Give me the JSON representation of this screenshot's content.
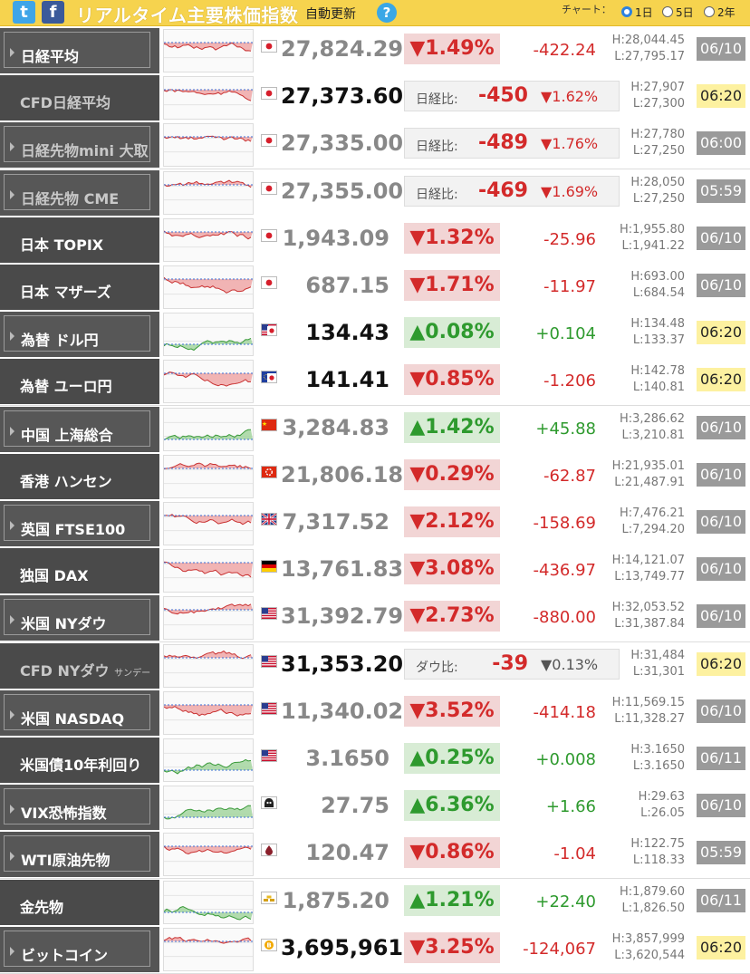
{
  "header": {
    "twitter_icon": "twitter-icon",
    "facebook_icon": "facebook-icon",
    "title": "リアルタイム主要株価指数",
    "auto_update": "自動更新",
    "help": "?",
    "chart_label": "チャート：",
    "options": [
      "1日",
      "5日",
      "2年"
    ],
    "selected_option": "1日"
  },
  "colors": {
    "header": "#f6d34e",
    "down": "#d32a2a",
    "up": "#2e9a2e",
    "live_time_bg": "#fdf1a0",
    "stale_time_bg": "#9a9a9a"
  },
  "rows": [
    {
      "name": "日経平均",
      "flag": "jp",
      "price": "27,824.29",
      "pct": "▼1.49%",
      "dir": "down",
      "change": "-422.24",
      "high": "H:28,044.45",
      "low": "L:27,795.17",
      "time": "06/10",
      "live": false,
      "cfd": false
    },
    {
      "name": "CFD日経平均",
      "flag": "jp",
      "price": "27,373.60",
      "diff_label": "日経比:",
      "diff_value": "-450",
      "diff_pct": "▼1.62%",
      "dir": "down",
      "high": "H:27,907",
      "low": "L:27,300",
      "time": "06:20",
      "live": true,
      "cfd": true
    },
    {
      "name": "日経先物mini 大取",
      "flag": "jp",
      "price": "27,335.00",
      "diff_label": "日経比:",
      "diff_value": "-489",
      "diff_pct": "▼1.76%",
      "dir": "down",
      "high": "H:27,780",
      "low": "L:27,250",
      "time": "06:00",
      "live": false,
      "cfd": true
    },
    {
      "name": "日経先物 CME",
      "flag": "jp",
      "price": "27,355.00",
      "diff_label": "日経比:",
      "diff_value": "-469",
      "diff_pct": "▼1.69%",
      "dir": "down",
      "high": "H:28,050",
      "low": "L:27,250",
      "time": "05:59",
      "live": false,
      "cfd": true
    },
    {
      "name": "日本 TOPIX",
      "flag": "jp",
      "price": "1,943.09",
      "pct": "▼1.32%",
      "dir": "down",
      "change": "-25.96",
      "high": "H:1,955.80",
      "low": "L:1,941.22",
      "time": "06/10",
      "live": false,
      "cfd": false
    },
    {
      "name": "日本 マザーズ",
      "flag": "jp",
      "price": "687.15",
      "pct": "▼1.71%",
      "dir": "down",
      "change": "-11.97",
      "high": "H:693.00",
      "low": "L:684.54",
      "time": "06/10",
      "live": false,
      "cfd": false
    },
    {
      "name": "為替 ドル円",
      "flag": "usjp",
      "price": "134.43",
      "pct": "▲0.08%",
      "dir": "up",
      "change": "+0.104",
      "high": "H:134.48",
      "low": "L:133.37",
      "time": "06:20",
      "live": true,
      "cfd": false
    },
    {
      "name": "為替 ユーロ円",
      "flag": "eujp",
      "price": "141.41",
      "pct": "▼0.85%",
      "dir": "down",
      "change": "-1.206",
      "high": "H:142.78",
      "low": "L:140.81",
      "time": "06:20",
      "live": true,
      "cfd": false
    },
    {
      "name": "中国 上海総合",
      "flag": "cn",
      "price": "3,284.83",
      "pct": "▲1.42%",
      "dir": "up",
      "change": "+45.88",
      "high": "H:3,286.62",
      "low": "L:3,210.81",
      "time": "06/10",
      "live": false,
      "cfd": false
    },
    {
      "name": "香港 ハンセン",
      "flag": "hk",
      "price": "21,806.18",
      "pct": "▼0.29%",
      "dir": "down",
      "change": "-62.87",
      "high": "H:21,935.01",
      "low": "L:21,487.91",
      "time": "06/10",
      "live": false,
      "cfd": false
    },
    {
      "name": "英国 FTSE100",
      "flag": "uk",
      "price": "7,317.52",
      "pct": "▼2.12%",
      "dir": "down",
      "change": "-158.69",
      "high": "H:7,476.21",
      "low": "L:7,294.20",
      "time": "06/10",
      "live": false,
      "cfd": false
    },
    {
      "name": "独国 DAX",
      "flag": "de",
      "price": "13,761.83",
      "pct": "▼3.08%",
      "dir": "down",
      "change": "-436.97",
      "high": "H:14,121.07",
      "low": "L:13,749.77",
      "time": "06/10",
      "live": false,
      "cfd": false
    },
    {
      "name": "米国 NYダウ",
      "flag": "us",
      "price": "31,392.79",
      "pct": "▼2.73%",
      "dir": "down",
      "change": "-880.00",
      "high": "H:32,053.52",
      "low": "L:31,387.84",
      "time": "06/10",
      "live": false,
      "cfd": false
    },
    {
      "name": "CFD NYダウ",
      "name_small": "サンデー",
      "flag": "us",
      "price": "31,353.20",
      "diff_label": "ダウ比:",
      "diff_value": "-39",
      "diff_pct": "▼0.13%",
      "dir": "down",
      "high": "H:31,484",
      "low": "L:31,301",
      "time": "06:20",
      "live": true,
      "cfd": true
    },
    {
      "name": "米国 NASDAQ",
      "flag": "us",
      "price": "11,340.02",
      "pct": "▼3.52%",
      "dir": "down",
      "change": "-414.18",
      "high": "H:11,569.15",
      "low": "L:11,328.27",
      "time": "06/10",
      "live": false,
      "cfd": false
    },
    {
      "name": "米国債10年利回り",
      "flag": "us",
      "price": "3.1650",
      "pct": "▲0.25%",
      "dir": "up",
      "change": "+0.008",
      "high": "H:3.1650",
      "low": "L:3.1650",
      "time": "06/11",
      "live": false,
      "cfd": false
    },
    {
      "name": "VIX恐怖指数",
      "flag": "vix",
      "price": "27.75",
      "pct": "▲6.36%",
      "dir": "up",
      "change": "+1.66",
      "high": "H:29.63",
      "low": "L:26.05",
      "time": "06/10",
      "live": false,
      "cfd": false
    },
    {
      "name": "WTI原油先物",
      "flag": "oil",
      "price": "120.47",
      "pct": "▼0.86%",
      "dir": "down",
      "change": "-1.04",
      "high": "H:122.75",
      "low": "L:118.33",
      "time": "05:59",
      "live": false,
      "cfd": false
    },
    {
      "name": "金先物",
      "flag": "gold",
      "price": "1,875.20",
      "pct": "▲1.21%",
      "dir": "up",
      "change": "+22.40",
      "high": "H:1,879.60",
      "low": "L:1,826.50",
      "time": "06/11",
      "live": false,
      "cfd": false
    },
    {
      "name": "ビットコイン",
      "flag": "btc",
      "price": "3,695,961",
      "pct": "▼3.25%",
      "dir": "down",
      "change": "-124,067",
      "high": "H:3,857,999",
      "low": "L:3,620,544",
      "time": "06:20",
      "live": true,
      "cfd": false
    }
  ]
}
